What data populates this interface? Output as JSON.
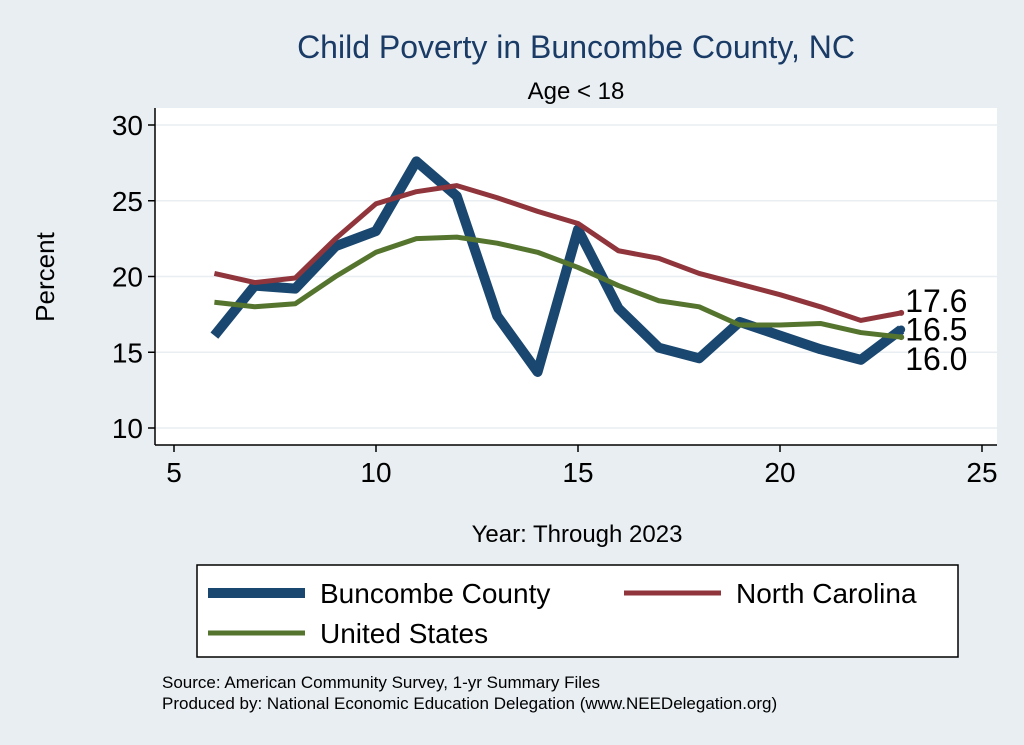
{
  "chart_data": {
    "type": "line",
    "title": "Child Poverty in Buncombe County, NC",
    "subtitle": "Age < 18",
    "xlabel": "Year: Through 2023",
    "ylabel": "Percent",
    "xlim": [
      5,
      25
    ],
    "ylim": [
      10,
      30
    ],
    "xticks": [
      5,
      10,
      15,
      20,
      25
    ],
    "yticks": [
      10,
      15,
      20,
      25,
      30
    ],
    "grid": true,
    "legend_position": "bottom",
    "x": [
      6,
      7,
      8,
      9,
      10,
      11,
      12,
      13,
      14,
      15,
      16,
      17,
      18,
      19,
      20,
      21,
      22,
      23
    ],
    "series": [
      {
        "name": "Buncombe County",
        "color": "#1a476f",
        "values": [
          16.1,
          19.4,
          19.2,
          22.0,
          23.0,
          27.6,
          25.3,
          17.4,
          13.7,
          23.1,
          17.9,
          15.3,
          14.6,
          17.0,
          16.1,
          15.2,
          14.5,
          16.5
        ],
        "end_label": "16.5"
      },
      {
        "name": "North Carolina",
        "color": "#90353b",
        "values": [
          20.2,
          19.6,
          19.9,
          22.5,
          24.8,
          25.6,
          26.0,
          25.2,
          24.3,
          23.5,
          21.7,
          21.2,
          20.2,
          19.5,
          18.8,
          18.0,
          17.1,
          17.6
        ],
        "end_label": "17.6"
      },
      {
        "name": "United States",
        "color": "#55752f",
        "values": [
          18.3,
          18.0,
          18.2,
          20.0,
          21.6,
          22.5,
          22.6,
          22.2,
          21.6,
          20.6,
          19.4,
          18.4,
          18.0,
          16.8,
          16.8,
          16.9,
          16.3,
          16.0
        ],
        "end_label": "16.0"
      }
    ]
  },
  "footer": {
    "source": "Source: American Community Survey, 1-yr Summary Files",
    "produced": "Produced by: National Economic Education Delegation (www.NEEDelegation.org)"
  }
}
